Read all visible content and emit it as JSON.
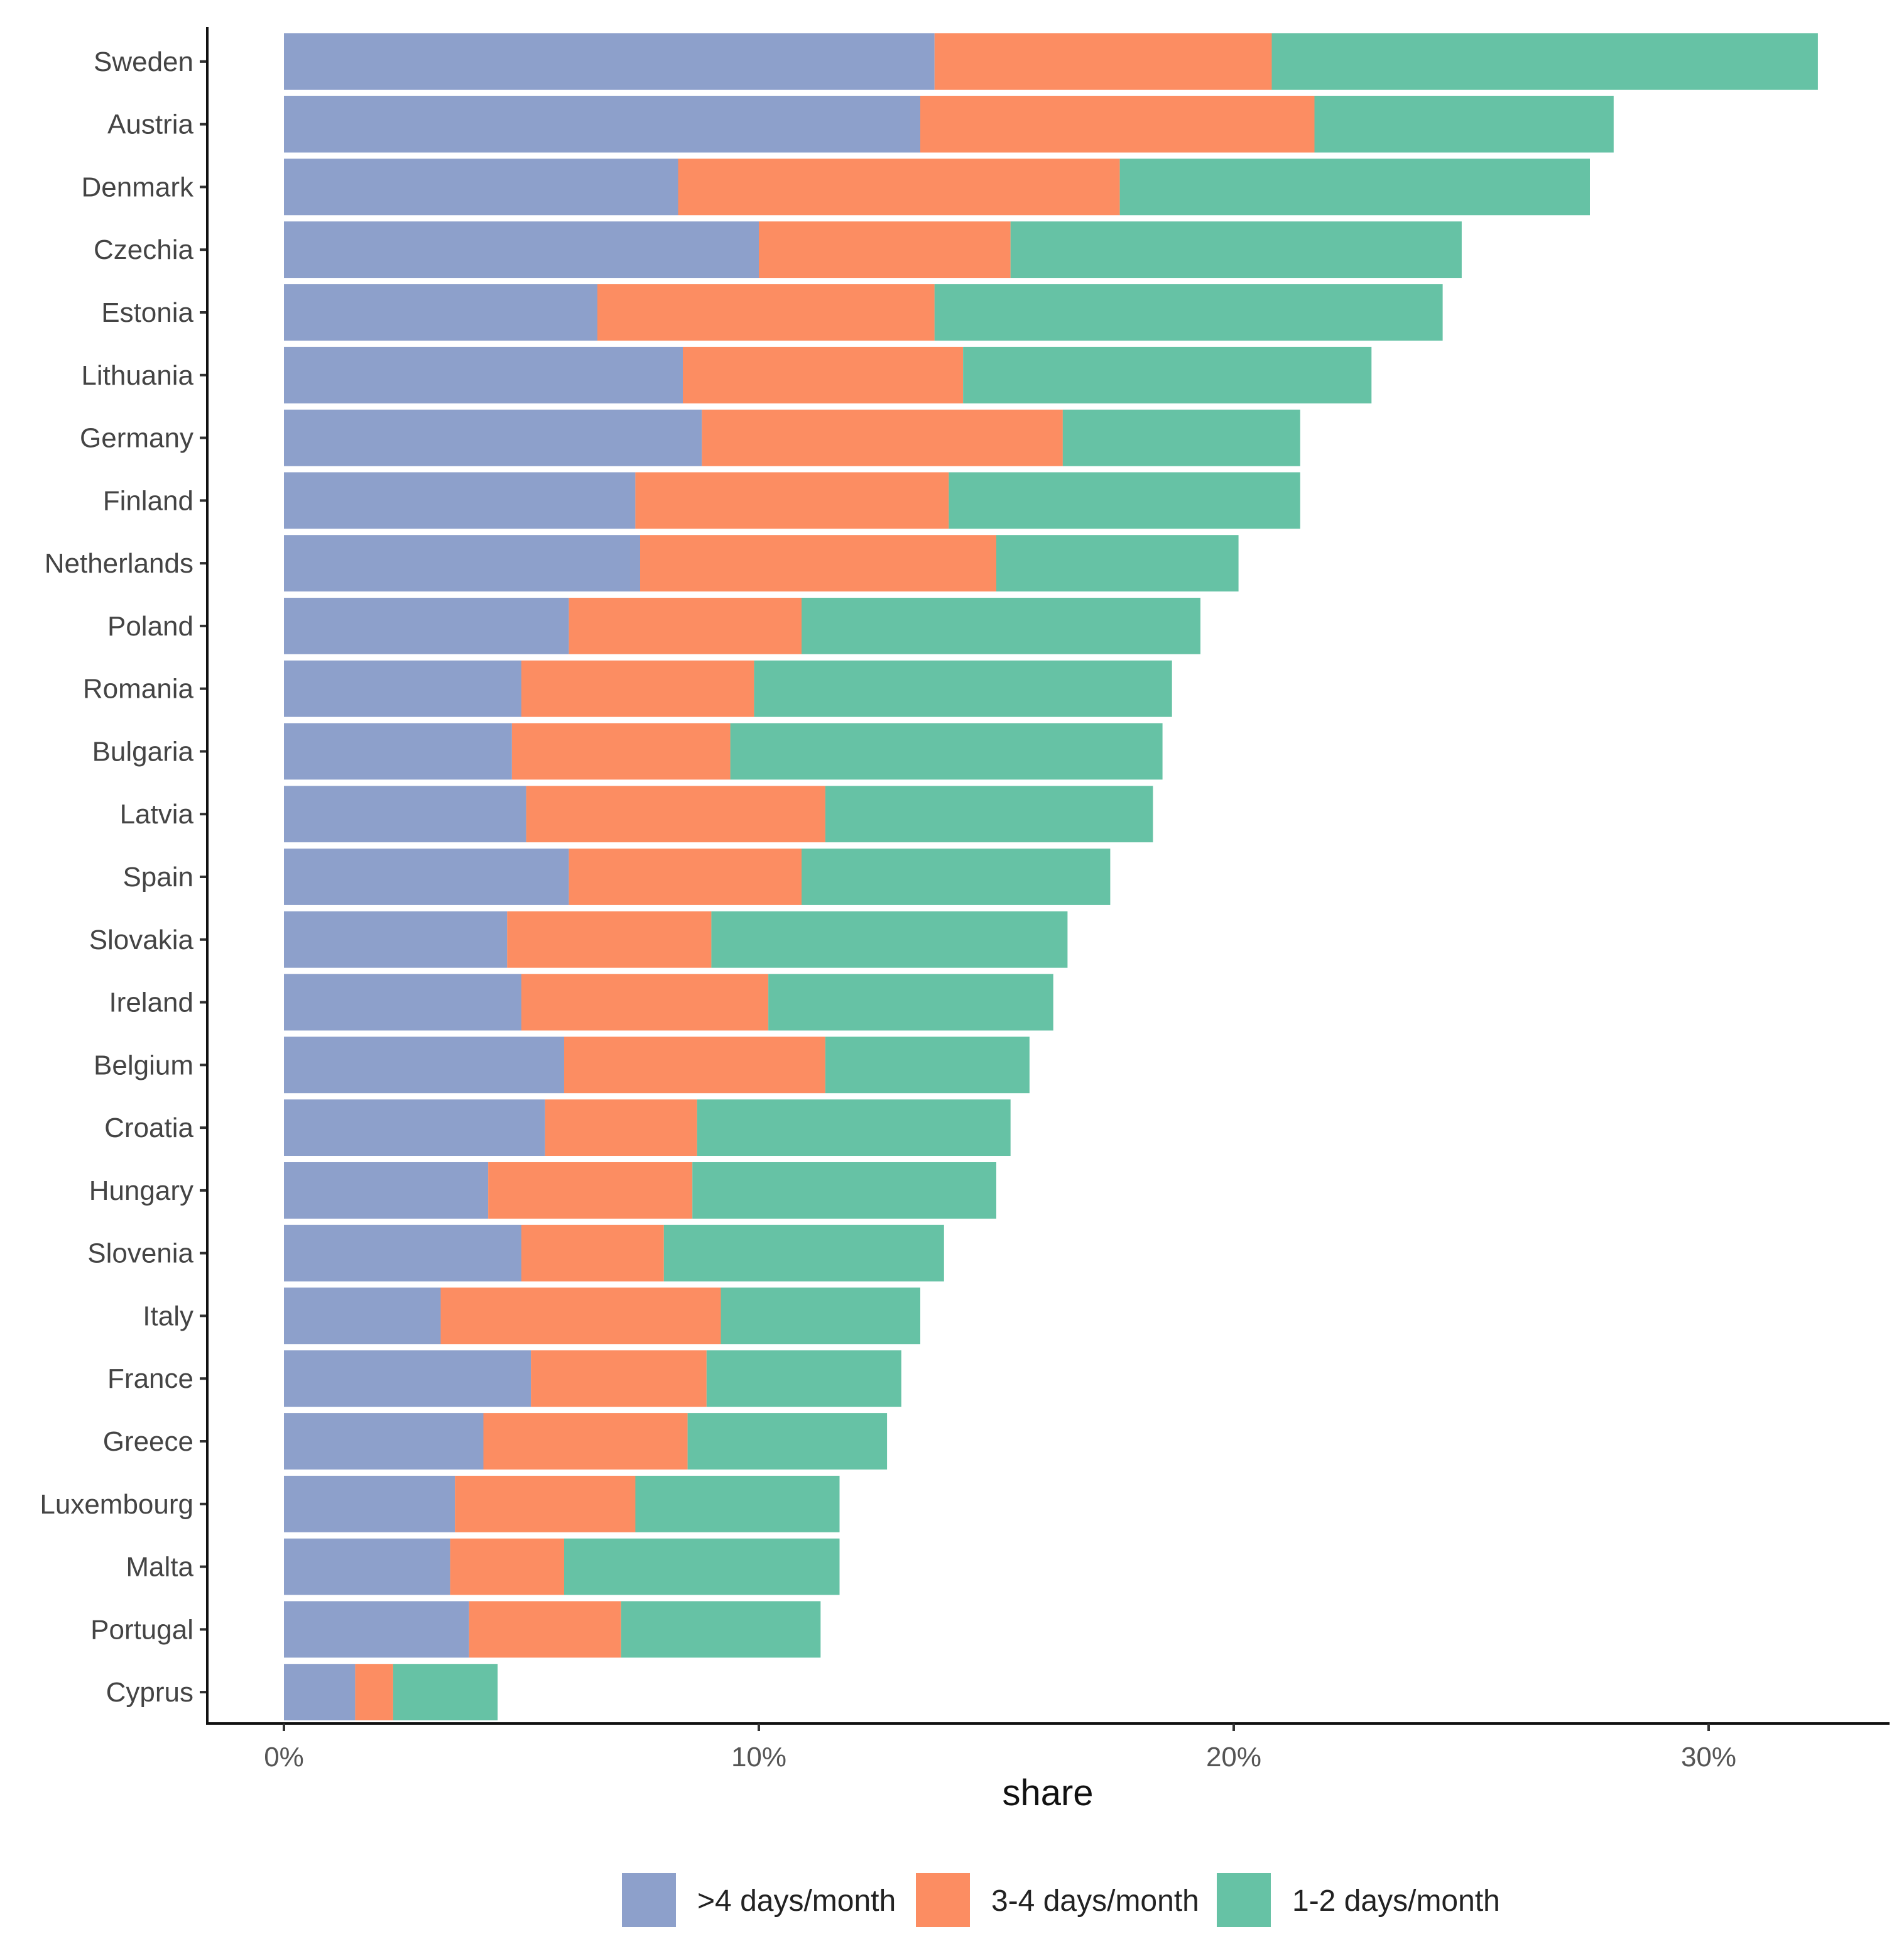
{
  "chart_data": {
    "type": "bar",
    "orientation": "horizontal",
    "stacked": true,
    "title": "",
    "xlabel": "share",
    "ylabel": "",
    "xlim": [
      -1.6,
      33.8
    ],
    "x_ticks": [
      0,
      10,
      20,
      30
    ],
    "x_tick_labels": [
      "0%",
      "10%",
      "20%",
      "30%"
    ],
    "grid": false,
    "legend_position": "bottom",
    "categories": [
      "Sweden",
      "Austria",
      "Denmark",
      "Czechia",
      "Estonia",
      "Lithuania",
      "Germany",
      "Finland",
      "Netherlands",
      "Poland",
      "Romania",
      "Bulgaria",
      "Latvia",
      "Spain",
      "Slovakia",
      "Ireland",
      "Belgium",
      "Croatia",
      "Hungary",
      "Slovenia",
      "Italy",
      "France",
      "Greece",
      "Luxembourg",
      "Malta",
      "Portugal",
      "Cyprus"
    ],
    "series": [
      {
        "name": ">4 days/month",
        "color": "#8DA0CB",
        "values": [
          13.7,
          13.4,
          8.3,
          10.0,
          6.6,
          8.4,
          8.8,
          7.4,
          7.5,
          6.0,
          5.0,
          4.8,
          5.1,
          6.0,
          4.7,
          5.0,
          5.9,
          5.5,
          4.3,
          5.0,
          3.3,
          5.2,
          4.2,
          3.6,
          3.5,
          3.9,
          1.5
        ]
      },
      {
        "name": "3-4 days/month",
        "color": "#FC8D62",
        "values": [
          7.1,
          8.3,
          9.3,
          5.3,
          7.1,
          5.9,
          7.6,
          6.6,
          7.5,
          4.9,
          4.9,
          4.6,
          6.3,
          4.9,
          4.3,
          5.2,
          5.5,
          3.2,
          4.3,
          3.0,
          5.9,
          3.7,
          4.3,
          3.8,
          2.4,
          3.2,
          0.8
        ]
      },
      {
        "name": "1-2 days/month",
        "color": "#66C2A5",
        "values": [
          11.5,
          6.3,
          9.9,
          9.5,
          10.7,
          8.6,
          5.0,
          7.4,
          5.1,
          8.4,
          8.8,
          9.1,
          6.9,
          6.5,
          7.5,
          6.0,
          4.3,
          6.6,
          6.4,
          5.9,
          4.2,
          4.1,
          4.2,
          4.3,
          5.8,
          4.2,
          2.2
        ]
      }
    ]
  }
}
